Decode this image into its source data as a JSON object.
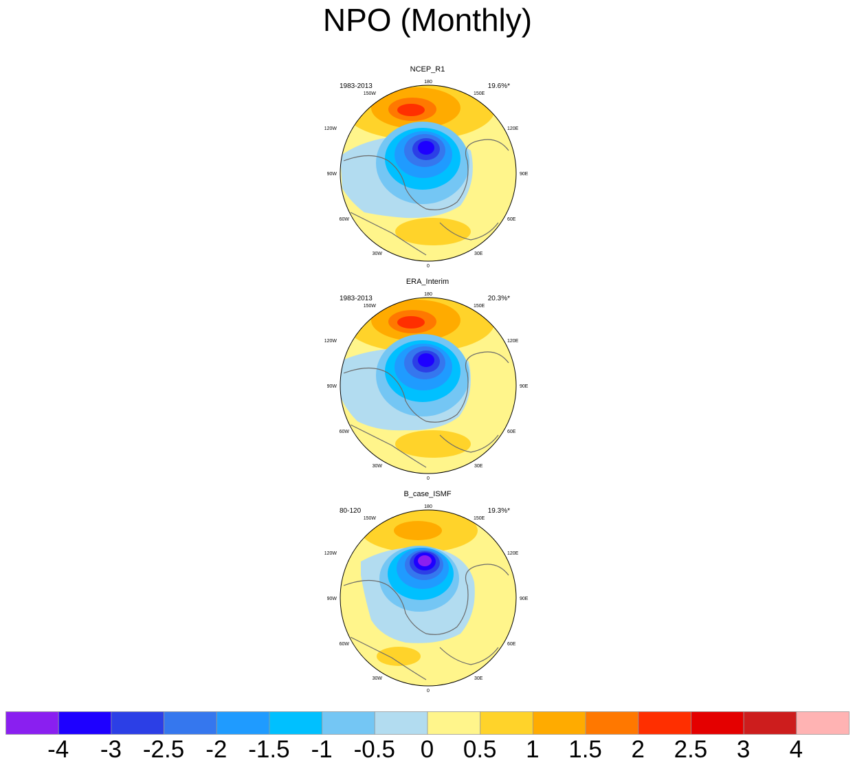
{
  "title": "NPO (Monthly)",
  "panels": [
    {
      "title": "NCEP_R1",
      "period": "1983-2013",
      "percent": "19.6%*"
    },
    {
      "title": "ERA_Interim",
      "period": "1983-2013",
      "percent": "20.3%*"
    },
    {
      "title": "B_case_ISMF",
      "period": "80-120",
      "percent": "19.3%*"
    }
  ],
  "map_labels": {
    "top": "180",
    "bottom": "0",
    "upper_left": "150W",
    "upper_right": "150E",
    "left_upper": "120W",
    "right_upper": "120E",
    "left": "90W",
    "right": "90E",
    "left_lower": "60W",
    "right_lower": "60E",
    "lower_left": "30W",
    "lower_right": "30E"
  },
  "colorbar": {
    "labels": [
      "-4",
      "-3",
      "-2.5",
      "-2",
      "-1.5",
      "-1",
      "-0.5",
      "0",
      "0.5",
      "1",
      "1.5",
      "2",
      "2.5",
      "3",
      "4"
    ],
    "colors": [
      "#8a1ff0",
      "#1e00ff",
      "#2c3fe6",
      "#3577ee",
      "#1f9bff",
      "#00c0ff",
      "#74c6f4",
      "#b2dcf0",
      "#fff58b",
      "#ffd32a",
      "#ffab00",
      "#ff7800",
      "#ff2f00",
      "#e40000",
      "#cd1d1d",
      "#ffb3b3"
    ]
  },
  "colors": {
    "coast": "#6a6a6a",
    "land_fill": "#fff58b"
  }
}
